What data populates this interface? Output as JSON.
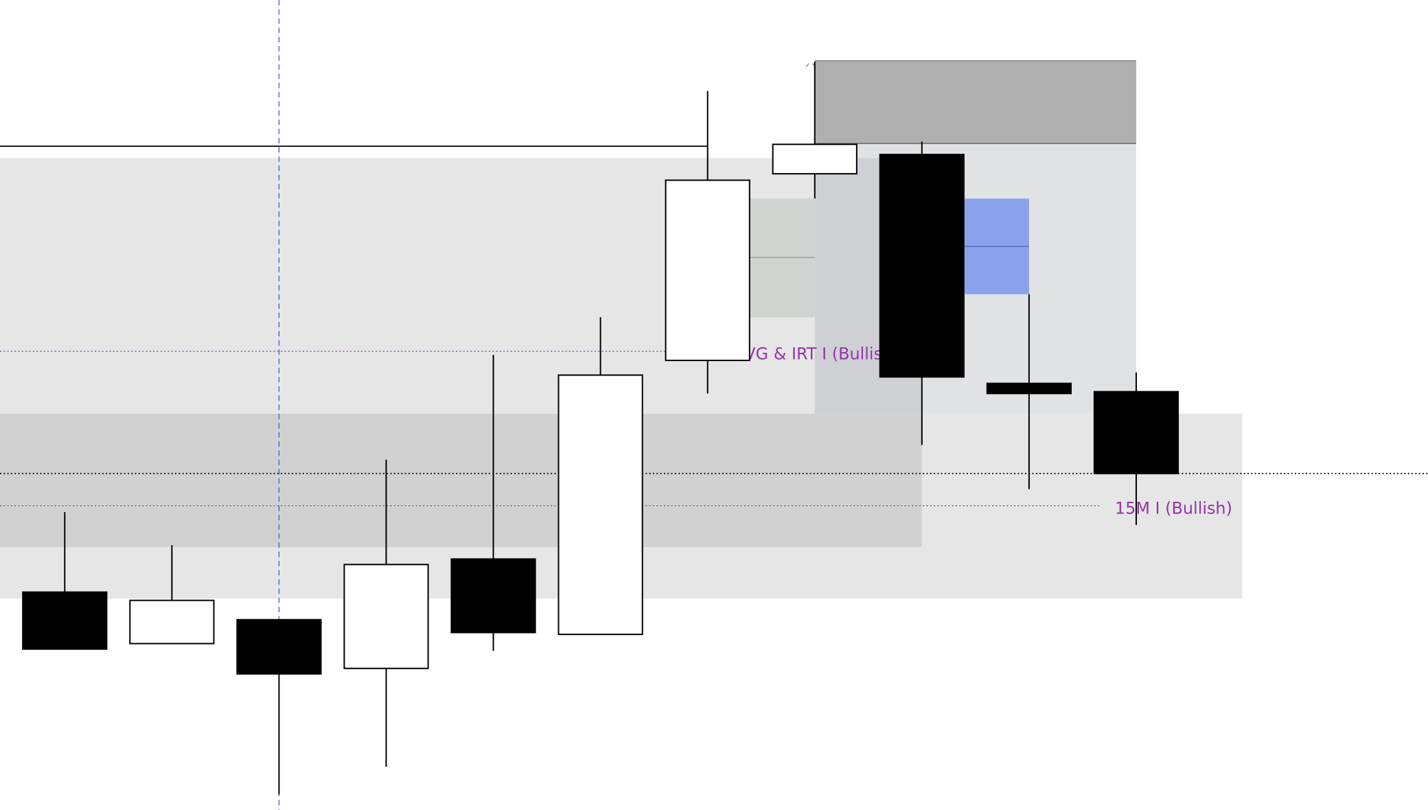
{
  "chart_data": {
    "type": "candlestick",
    "title": "",
    "xlabel": "",
    "ylabel": "",
    "grid": false,
    "bull_color": "#ffffff",
    "bear_color": "#000000",
    "candles": [
      {
        "o": 237,
        "h": 324,
        "l": 175,
        "c": 175
      },
      {
        "o": 181,
        "h": 288,
        "l": 181,
        "c": 228
      },
      {
        "o": 207,
        "h": 207,
        "l": 17,
        "c": 148
      },
      {
        "o": 154,
        "h": 381,
        "l": 47,
        "c": 267
      },
      {
        "o": 273,
        "h": 495,
        "l": 173,
        "c": 193
      },
      {
        "o": 191,
        "h": 536,
        "l": 191,
        "c": 473
      },
      {
        "o": 489,
        "h": 782,
        "l": 453,
        "c": 685
      },
      {
        "o": 692,
        "h": 814,
        "l": 665,
        "c": 724
      },
      {
        "o": 713,
        "h": 727,
        "l": 397,
        "c": 471
      },
      {
        "o": 464,
        "h": 561,
        "l": 349,
        "c": 453
      },
      {
        "o": 455,
        "h": 476,
        "l": 310,
        "c": 366
      }
    ],
    "zones": [
      {
        "name": "upper-range-zone",
        "from": -0.61,
        "to": 7.0,
        "top": 709,
        "bottom": 431,
        "color": "#e6e6e6"
      },
      {
        "name": "lower-range-zone",
        "from": -0.61,
        "to": 10.99,
        "top": 431,
        "bottom": 230,
        "color": "#e6e6e6"
      },
      {
        "name": "lower-dark-zone",
        "from": -0.61,
        "to": 8.0,
        "top": 431,
        "bottom": 286,
        "color": "#d1d1d1"
      },
      {
        "name": "premium-zone",
        "from": 7.0,
        "to": 10.0,
        "top": 725,
        "bottom": 431,
        "color": "#e1e2e4"
      },
      {
        "name": "premium-dark-zone",
        "from": 7.0,
        "to": 8.0,
        "top": 709,
        "bottom": 431,
        "color": "#cfd0d4"
      },
      {
        "name": "supply-zone",
        "from": 7.0,
        "to": 10.0,
        "top": 815,
        "bottom": 725,
        "color": "#afafaf",
        "stroke": "#7d7d84"
      },
      {
        "name": "fvg-zone-gray",
        "from": 6.4,
        "to": 7.0,
        "top": 665,
        "bottom": 536,
        "color": "#cfd4d0",
        "mid": 601,
        "mid_color": "#999c99"
      },
      {
        "name": "fvg-zone-blue",
        "from": 8.4,
        "to": 9.0,
        "top": 665,
        "bottom": 561,
        "color": "#8aa2ec",
        "mid": 613,
        "mid_color": "#4f62b0"
      }
    ],
    "lines": [
      {
        "name": "swing-high-line",
        "from": -0.61,
        "to": 6.0,
        "price": 722,
        "color": "#000000",
        "style": "solid"
      },
      {
        "name": "current-price-line",
        "from": -0.61,
        "to": 12.75,
        "price": 366,
        "color": "#000000",
        "style": "dotted"
      }
    ],
    "levels": [
      {
        "name": "fvg-irt-level",
        "from": -0.61,
        "to": 5.6,
        "price": 499,
        "label": "FVG & IRT I (Bullish)",
        "label_at": 6.25,
        "color": "#9535aa"
      },
      {
        "name": "15m-level",
        "from": -0.61,
        "to": 9.67,
        "price": 331,
        "label": "15M I (Bullish)",
        "label_at": 9.75,
        "color": "#9535aa"
      }
    ],
    "crosshair": {
      "bar": 2,
      "color": "#3b5fe0"
    }
  }
}
